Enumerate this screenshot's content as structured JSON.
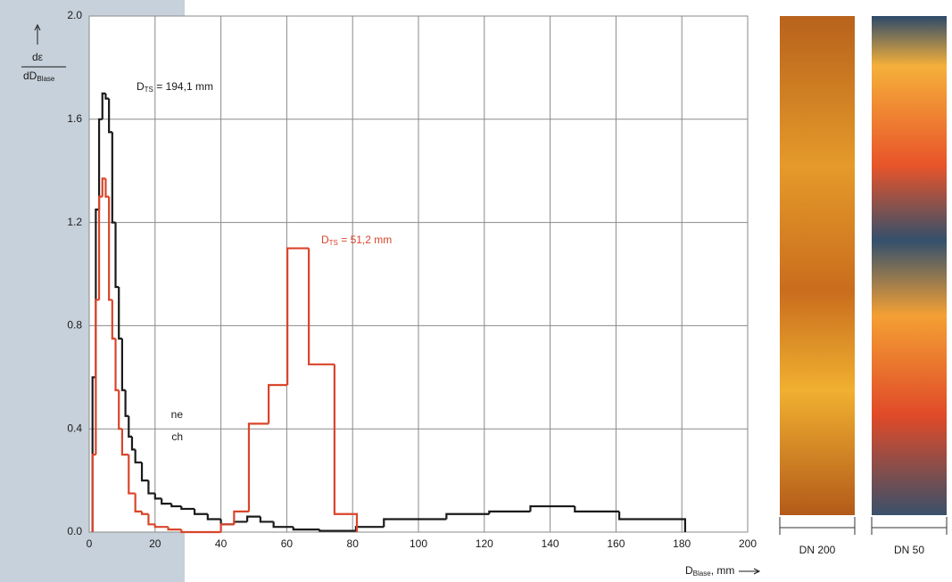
{
  "chart_data": {
    "type": "step",
    "ylim": [
      0,
      2
    ],
    "yticks": [
      {
        "value": 0,
        "label": "0.0"
      },
      {
        "value": 0.4,
        "label": "0.4"
      },
      {
        "value": 0.8,
        "label": "0.8"
      },
      {
        "value": 1.2,
        "label": "1.2"
      },
      {
        "value": 1.6,
        "label": "1.6"
      },
      {
        "value": 2,
        "label": "2.0"
      }
    ],
    "xlim": [
      0,
      200
    ],
    "xticks": [
      0,
      20,
      40,
      60,
      80,
      100,
      120,
      140,
      160,
      180,
      200
    ],
    "grid": true,
    "y_label": {
      "top": "dε",
      "bottom": "dD",
      "bottom_sub": "Blase"
    },
    "x_label": {
      "text": "D",
      "sub": "Blase",
      "rest": ", mm"
    },
    "series": [
      {
        "color": "#1a1a1a",
        "annotation": {
          "text": "D",
          "sub": "TS",
          "rest": " = 194,1 mm"
        },
        "bins": [
          1,
          2,
          3,
          4,
          5,
          6,
          7,
          8,
          9,
          10,
          11,
          12,
          13,
          14,
          16,
          18,
          20,
          22,
          25,
          28,
          32,
          36,
          40,
          44,
          48,
          52,
          56,
          62,
          70,
          81,
          89.5,
          108.5,
          121.5,
          134,
          147.5,
          161,
          181
        ],
        "values": [
          0.6,
          1.25,
          1.6,
          1.7,
          1.68,
          1.55,
          1.2,
          0.95,
          0.75,
          0.55,
          0.45,
          0.37,
          0.32,
          0.27,
          0.2,
          0.15,
          0.13,
          0.11,
          0.1,
          0.09,
          0.07,
          0.05,
          0.03,
          0.04,
          0.06,
          0.04,
          0.02,
          0.01,
          0.005,
          0.02,
          0.05,
          0.07,
          0.08,
          0.1,
          0.08,
          0.05
        ]
      },
      {
        "color": "#d9452b",
        "annotation": {
          "text": "D",
          "sub": "TS",
          "rest": " = 51,2 mm"
        },
        "bins": [
          1,
          2,
          3,
          4,
          5,
          6,
          7,
          8,
          9,
          10,
          12,
          14,
          16,
          18,
          20,
          24,
          28,
          40,
          44,
          48.5,
          54.5,
          60.2,
          66.7,
          74.5,
          81.3
        ],
        "values": [
          0.3,
          0.9,
          1.3,
          1.37,
          1.3,
          0.9,
          0.75,
          0.55,
          0.4,
          0.3,
          0.15,
          0.08,
          0.07,
          0.03,
          0.02,
          0.01,
          0,
          0.03,
          0.08,
          0.42,
          0.57,
          1.1,
          0.65,
          0.07
        ]
      }
    ],
    "images": [
      "DN 200",
      "DN 50"
    ]
  },
  "side_text": [
    "ne",
    "ch"
  ]
}
